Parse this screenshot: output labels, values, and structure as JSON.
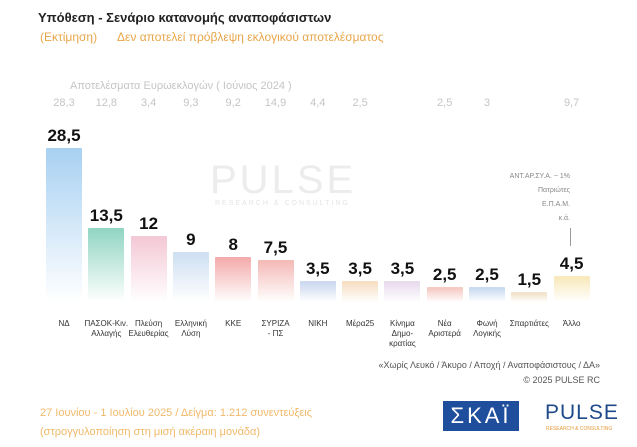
{
  "chart_data": {
    "type": "bar",
    "title": "Υπόθεση - Σενάριο κατανομής αναποφάσιστων",
    "subtitle_tag": "(Εκτίμηση)",
    "subtitle": "Δεν αποτελεί πρόβλεψη εκλογικού αποτελέσματος",
    "categories": [
      "ΝΔ",
      "ΠΑΣΟΚ-Κιν.\nΑλλαγής",
      "Πλεύση\nΕλευθερίας",
      "Ελληνική\nΛύση",
      "ΚΚΕ",
      "ΣΥΡΙΖΑ\n- ΠΣ",
      "ΝΙΚΗ",
      "Μέρα25",
      "Κίνημα\nΔημο-\nκρατίας",
      "Νέα\nΑριστερά",
      "Φωνή\nΛογικής",
      "Σπαρτιάτες",
      "Άλλο"
    ],
    "values": [
      28.5,
      13.5,
      12,
      9,
      8,
      7.5,
      3.5,
      3.5,
      3.5,
      2.5,
      2.5,
      1.5,
      4.5
    ],
    "value_labels": [
      "28,5",
      "13,5",
      "12",
      "9",
      "8",
      "7,5",
      "3,5",
      "3,5",
      "3,5",
      "2,5",
      "2,5",
      "1,5",
      "4,5"
    ],
    "colors": [
      "#a9d1f2",
      "#93d6c3",
      "#f4c9d6",
      "#cfe0f2",
      "#f4adad",
      "#f4bcb9",
      "#cdd9ef",
      "#f7dfc4",
      "#e9dcef",
      "#f6cbc4",
      "#cbdcf0",
      "#f1e3cc",
      "#f8eabd"
    ],
    "previous": {
      "title": "Αποτελέσματα Ευρωεκλογών  ( Ιούνιος 2024 )",
      "values": [
        28.3,
        12.8,
        3.4,
        9.3,
        9.2,
        14.9,
        4.4,
        2.5,
        null,
        2.5,
        3,
        null,
        9.7
      ],
      "value_labels": [
        "28,3",
        "12,8",
        "3,4",
        "9,3",
        "9,2",
        "14,9",
        "4,4",
        "2,5",
        null,
        "2,5",
        "3",
        null,
        "9,7"
      ]
    },
    "annotations": [
      "ΑΝΤ.ΑΡ.ΣΥ.Α. ~ 1%",
      "Πατριώτες",
      "Ε.Π.Α.Μ.",
      "κ.ά."
    ],
    "notes": [
      "«Χωρίς Λευκό / Άκυρο / Αποχή / Αναποφάσιστους / ΔΑ»",
      "©  2025  PULSE RC"
    ],
    "footer": [
      "27 Ιουνίου - 1 Ιουλίου 2025   /   Δείγμα:   1.212 συνεντεύξεις",
      "(στρογγυλοποίηση στη μισή ακέραιη μονάδα)"
    ],
    "logos": {
      "broadcaster": "ΣΚΑΪ",
      "pollster": "PULSE",
      "pollster_tagline": "RESEARCH & CONSULTING"
    }
  }
}
